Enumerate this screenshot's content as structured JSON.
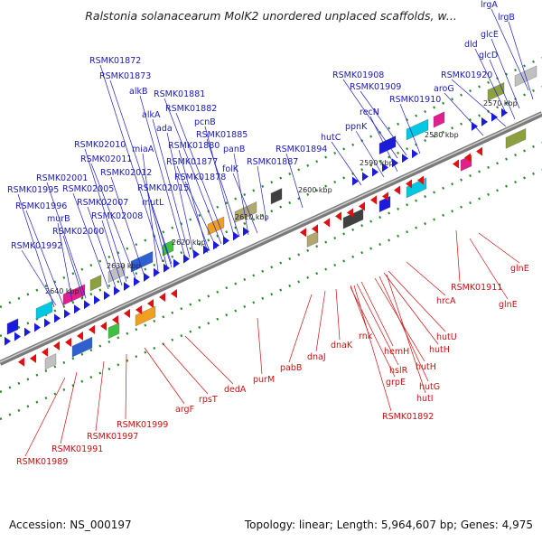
{
  "title": "Ralstonia solanacearum MolK2 unordered unplaced scaffolds, w...",
  "footer": {
    "accession": "Accession: NS_000197",
    "summary": "Topology: linear; Length: 5,964,607 bp; Genes: 4,975"
  },
  "colors": {
    "forward": "#1b1bdc",
    "reverse": "#e01010",
    "axis": "#7a7a7a",
    "dots": "#2a8a2a"
  },
  "scale_ticks": [
    "2570 kbp",
    "2580 kbp",
    "2590 kbp",
    "2600 kbp",
    "2610 kbp",
    "2620 kbp",
    "2630 kbp",
    "2640 kbp"
  ],
  "genes_forward": [
    "lrgA",
    "lrgB",
    "glcE",
    "dld",
    "glcD",
    "RSMK01920",
    "aroG",
    "RSMK01908",
    "RSMK01909",
    "RSMK01910",
    "recN",
    "ppnK",
    "hutC",
    "RSMK01894",
    "RSMK01887",
    "RSMK01872",
    "RSMK01873",
    "alkB",
    "alkA",
    "ada",
    "RSMK01881",
    "RSMK01882",
    "pcnB",
    "RSMK01885",
    "RSMK01880",
    "panB",
    "RSMK01877",
    "folK",
    "RSMK01878",
    "RSMK02010",
    "miaA",
    "RSMK02011",
    "RSMK02012",
    "RSMK02015",
    "RSMK02001",
    "RSMK02005",
    "mutL",
    "RSMK01995",
    "RSMK02007",
    "RSMK01996",
    "RSMK02008",
    "murB",
    "RSMK02000",
    "RSMK01992"
  ],
  "genes_reverse": [
    "glnE",
    "RSMK01911",
    "glnE",
    "hrcA",
    "hutU",
    "hutH",
    "rnk",
    "hemH",
    "hutH",
    "hslR",
    "hutG",
    "grpE",
    "hutI",
    "dnaK",
    "dnaJ",
    "RSMK01892",
    "pabB",
    "purM",
    "dedA",
    "rpsT",
    "argF",
    "RSMK01999",
    "RSMK01997",
    "RSMK01991",
    "RSMK01989"
  ]
}
